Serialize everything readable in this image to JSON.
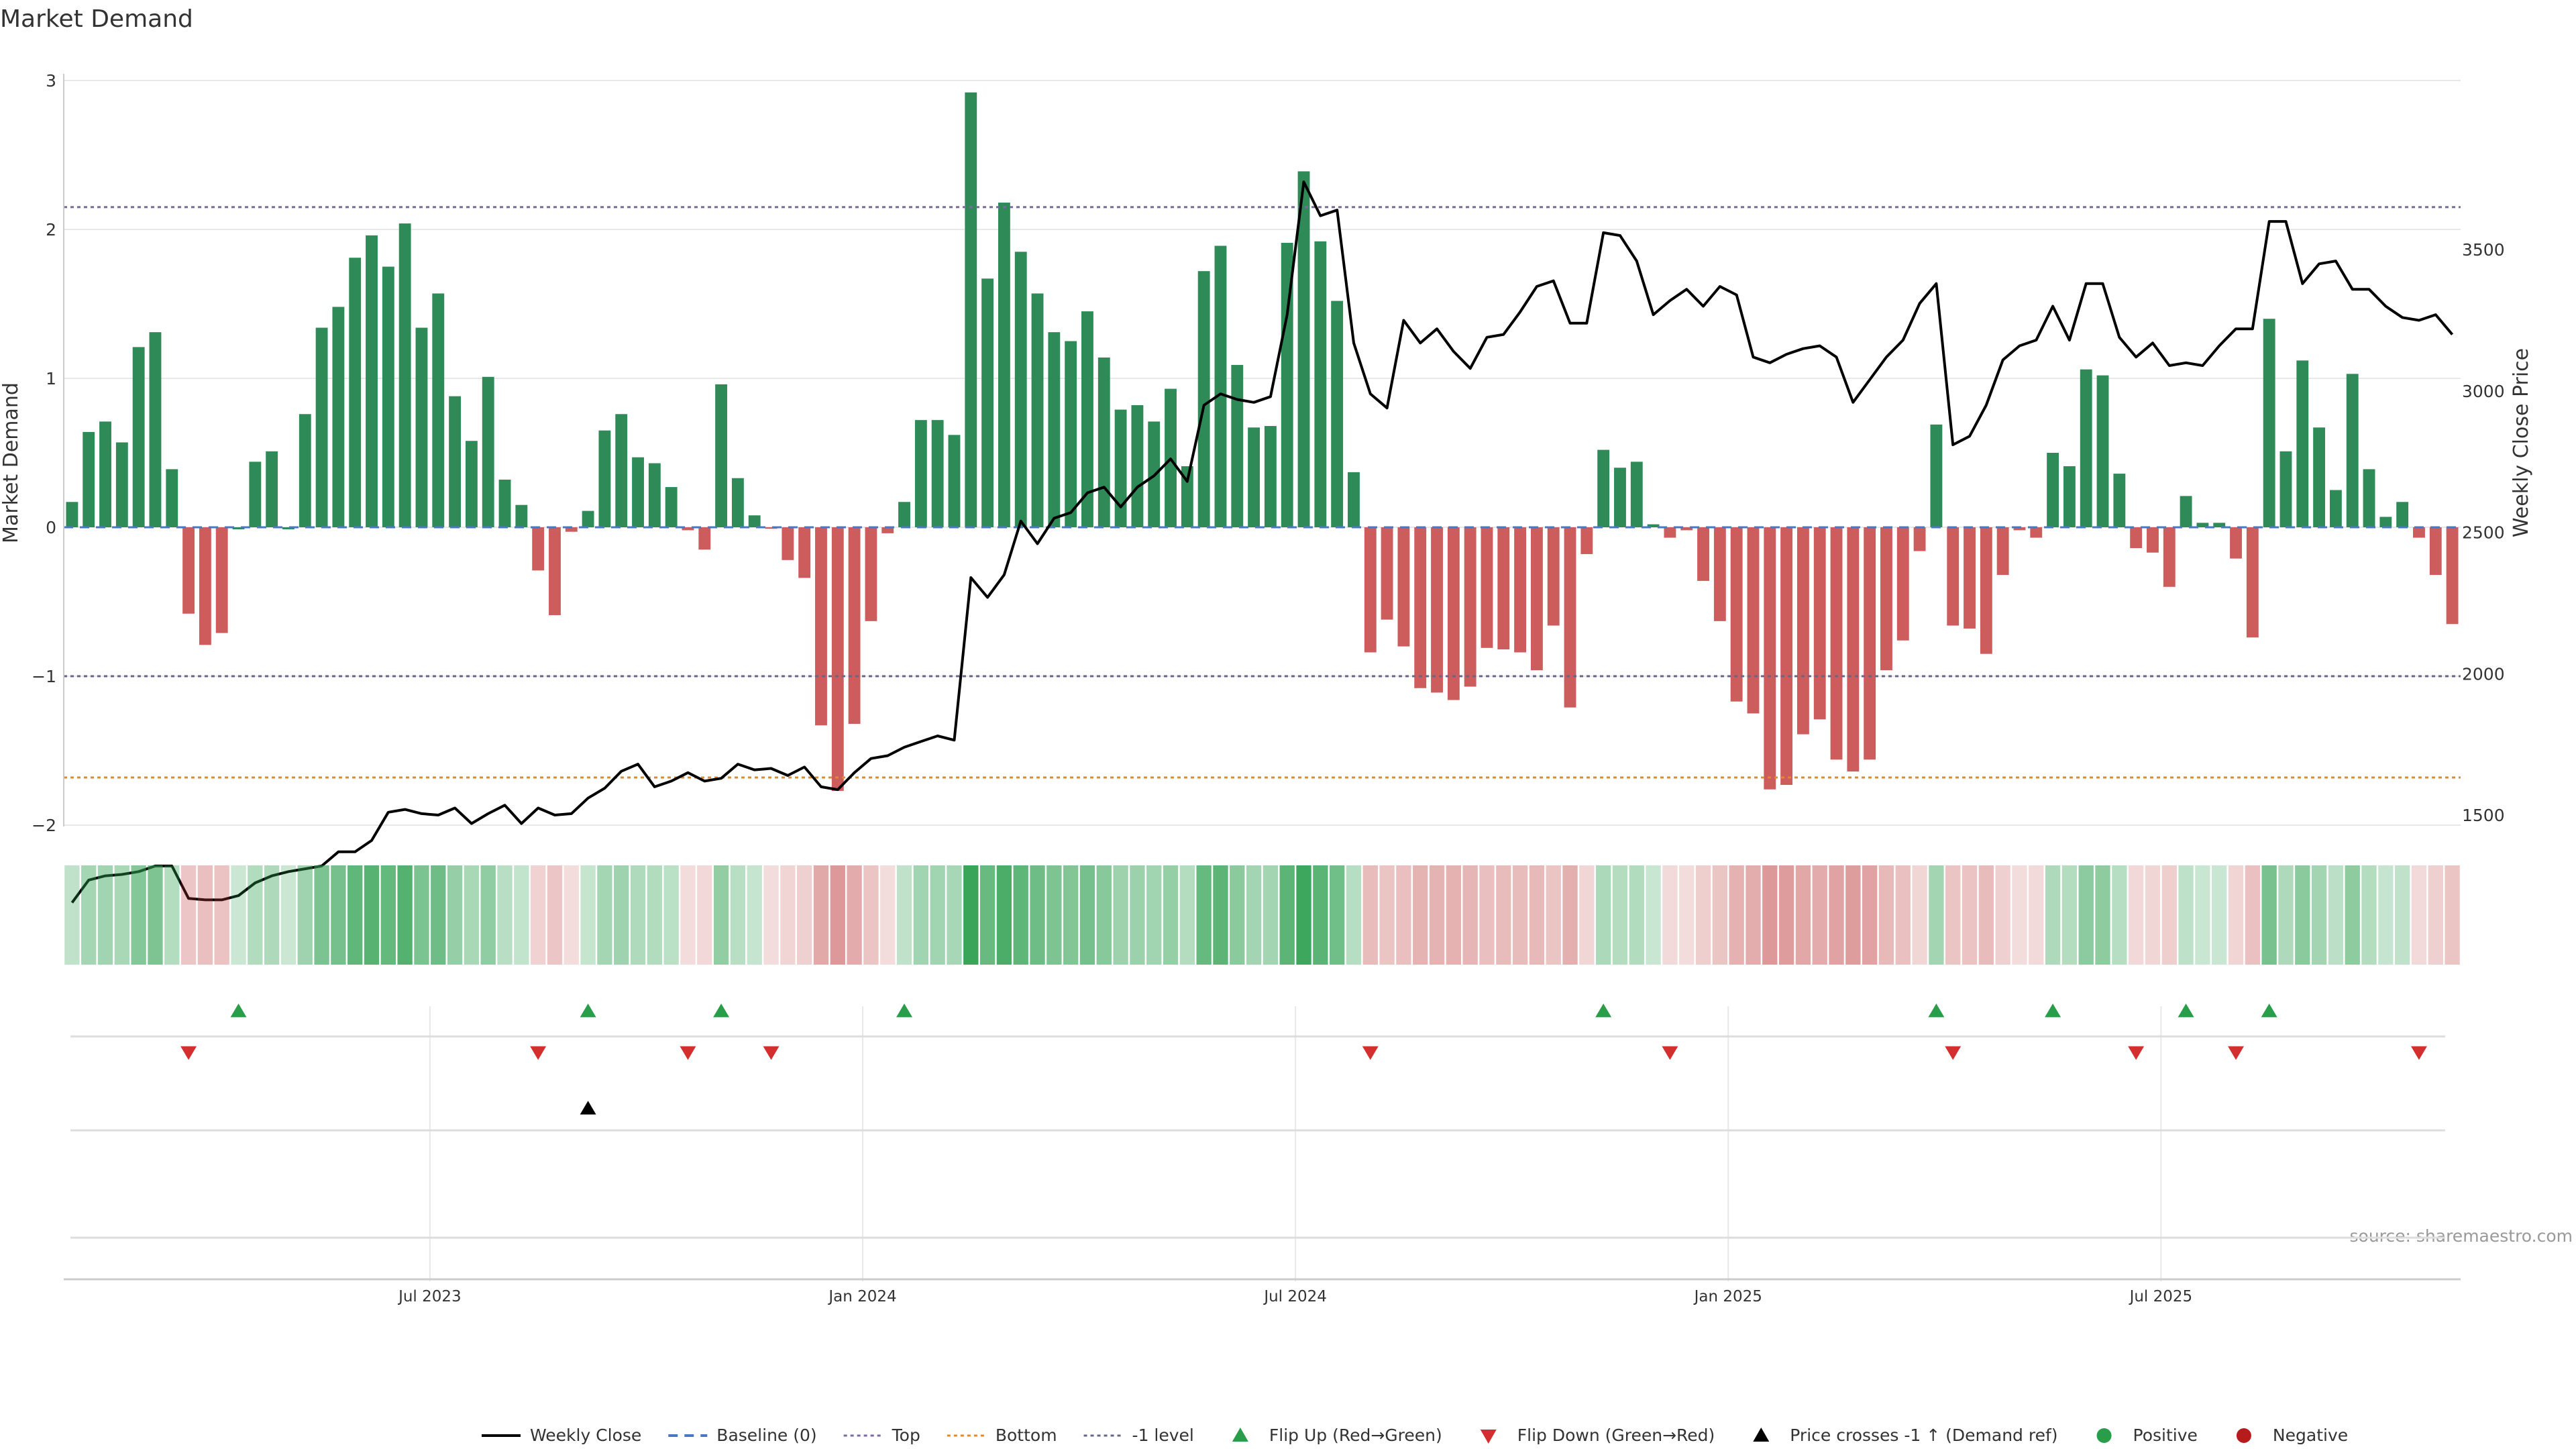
{
  "chart_data": {
    "type": "bar",
    "title": "Market Demand",
    "ylabel": "Market Demand",
    "y2label": "Weekly Close Price",
    "ylim": [
      -2,
      3.1
    ],
    "y2lim": [
      1200,
      3780
    ],
    "yticks": [
      3,
      2,
      1,
      0,
      -1,
      -2
    ],
    "yticks_labels": [
      "3",
      "2",
      "1",
      "0",
      "−1",
      "−2"
    ],
    "y2ticks": [
      3500,
      3000,
      2500,
      2000,
      1500
    ],
    "y2ticks_labels": [
      "3500",
      "3000",
      "2500",
      "2000",
      "1500"
    ],
    "top_level": 2.15,
    "bottom_level": -1.68,
    "minus_one_level": -1.0,
    "date_ticks": [
      "Jul 2023",
      "Jan 2024",
      "Jul 2024",
      "Jan 2025",
      "Jul 2025"
    ],
    "date_tick_weeks": [
      22,
      48,
      74,
      100,
      126
    ],
    "n_weeks": 144,
    "demand": [
      0.17,
      0.64,
      0.71,
      0.57,
      1.21,
      1.31,
      0.39,
      -0.58,
      -0.79,
      -0.71,
      0.0,
      0.44,
      0.51,
      0.0,
      0.76,
      1.34,
      1.48,
      1.81,
      1.96,
      1.75,
      2.04,
      1.34,
      1.57,
      0.88,
      0.58,
      1.01,
      0.32,
      0.15,
      -0.29,
      -0.59,
      -0.03,
      0.11,
      0.65,
      0.76,
      0.47,
      0.43,
      0.27,
      -0.02,
      -0.15,
      0.96,
      0.33,
      0.08,
      -0.01,
      -0.22,
      -0.34,
      -1.33,
      -1.77,
      -1.32,
      -0.63,
      -0.04,
      0.17,
      0.72,
      0.72,
      0.62,
      2.92,
      1.67,
      2.18,
      1.85,
      1.57,
      1.31,
      1.25,
      1.45,
      1.14,
      0.79,
      0.82,
      0.71,
      0.93,
      0.41,
      1.72,
      1.89,
      1.09,
      0.67,
      0.68,
      1.91,
      2.39,
      1.92,
      1.52,
      0.37,
      -0.84,
      -0.62,
      -0.8,
      -1.08,
      -1.11,
      -1.16,
      -1.07,
      -0.81,
      -0.82,
      -0.84,
      -0.96,
      -0.66,
      -1.21,
      -0.18,
      0.52,
      0.4,
      0.44,
      0.02,
      -0.07,
      -0.02,
      -0.36,
      -0.63,
      -1.17,
      -1.25,
      -1.76,
      -1.73,
      -1.39,
      -1.29,
      -1.56,
      -1.64,
      -1.56,
      -0.96,
      -0.76,
      -0.16,
      0.69,
      -0.66,
      -0.68,
      -0.85,
      -0.32,
      -0.02,
      -0.07,
      0.5,
      0.41,
      1.06,
      1.02,
      0.36,
      -0.14,
      -0.17,
      -0.4,
      0.21,
      0.03,
      0.03,
      -0.21,
      -0.74,
      1.4,
      0.51,
      1.12,
      0.67,
      0.25,
      1.03,
      0.39,
      0.07,
      0.17,
      -0.07,
      -0.32,
      -0.65
    ],
    "weekly_close": [
      1190,
      1270,
      1285,
      1290,
      1300,
      1320,
      1320,
      1205,
      1200,
      1200,
      1215,
      1260,
      1285,
      1300,
      1310,
      1320,
      1370,
      1370,
      1410,
      1510,
      1520,
      1505,
      1500,
      1525,
      1470,
      1505,
      1535,
      1470,
      1525,
      1500,
      1505,
      1560,
      1595,
      1655,
      1680,
      1600,
      1620,
      1650,
      1620,
      1630,
      1680,
      1660,
      1665,
      1640,
      1670,
      1600,
      1590,
      1650,
      1700,
      1710,
      1740,
      1760,
      1780,
      1765,
      2340,
      2270,
      2350,
      2540,
      2460,
      2550,
      2570,
      2640,
      2660,
      2590,
      2660,
      2700,
      2760,
      2680,
      2950,
      2990,
      2970,
      2960,
      2980,
      3270,
      3740,
      3620,
      3640,
      3170,
      2990,
      2940,
      3250,
      3170,
      3220,
      3140,
      3080,
      3190,
      3200,
      3280,
      3370,
      3390,
      3240,
      3240,
      3560,
      3550,
      3460,
      3270,
      3320,
      3360,
      3300,
      3370,
      3340,
      3120,
      3100,
      3130,
      3150,
      3160,
      3120,
      2960,
      3040,
      3120,
      3180,
      3310,
      3380,
      2810,
      2840,
      2950,
      3110,
      3160,
      3180,
      3300,
      3180,
      3380,
      3380,
      3190,
      3120,
      3170,
      3090,
      3100,
      3090,
      3160,
      3220,
      3220,
      3600,
      3600,
      3380,
      3450,
      3460,
      3360,
      3360,
      3300,
      3260,
      3250,
      3270,
      3200
    ],
    "flip_up_weeks": [
      10,
      31,
      39,
      50,
      92,
      112,
      119,
      127,
      132
    ],
    "flip_down_weeks": [
      7,
      28,
      37,
      42,
      78,
      96,
      113,
      124,
      130,
      141
    ],
    "price_cross_weeks": [
      31
    ],
    "source": "source: sharemaestro.com",
    "legend": [
      {
        "kind": "line",
        "label": "Weekly Close",
        "color": "#000000"
      },
      {
        "kind": "dash",
        "label": "Baseline (0)",
        "color": "#4a78c0"
      },
      {
        "kind": "dot",
        "label": "Top",
        "color": "#7a6aa0"
      },
      {
        "kind": "dot",
        "label": "Bottom",
        "color": "#e08a2c"
      },
      {
        "kind": "dot",
        "label": "-1 level",
        "color": "#666688"
      },
      {
        "kind": "tri-up",
        "label": "Flip Up (Red→Green)",
        "color": "#2a9d4a"
      },
      {
        "kind": "tri-down",
        "label": "Flip Down (Green→Red)",
        "color": "#d32f2f"
      },
      {
        "kind": "tri-up",
        "label": "Price crosses -1 ↑ (Demand ref)",
        "color": "#000000"
      },
      {
        "kind": "circle",
        "label": "Positive",
        "color": "#2a9d4a"
      },
      {
        "kind": "circle",
        "label": "Negative",
        "color": "#b71c1c"
      }
    ]
  },
  "colors": {
    "positive_bar": "#2e8b57",
    "negative_bar": "#cd5c5c",
    "price_line": "#000000",
    "grid": "#e8e8e8"
  }
}
